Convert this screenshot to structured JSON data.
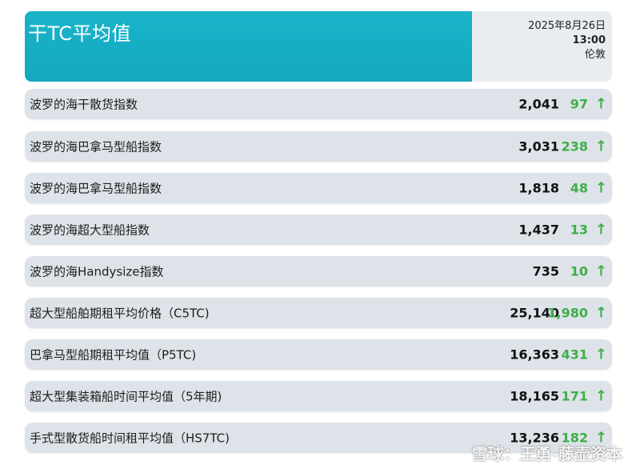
{
  "header": {
    "title": "干TC平均值",
    "date": "2025年8月26日",
    "time": "13:00",
    "location": "伦敦"
  },
  "rows": [
    {
      "label": "波罗的海干散货指数",
      "value": "2,041",
      "change": "97",
      "arrow": "↑"
    },
    {
      "label": "波罗的海巴拿马型船指数",
      "value": "3,031",
      "change": "238",
      "arrow": "↑"
    },
    {
      "label": "波罗的海巴拿马型船指数",
      "value": "1,818",
      "change": "48",
      "arrow": "↑"
    },
    {
      "label": "波罗的海超大型船指数",
      "value": "1,437",
      "change": "13",
      "arrow": "↑"
    },
    {
      "label": "波罗的海Handysize指数",
      "value": "735",
      "change": "10",
      "arrow": "↑"
    },
    {
      "label": "超大型船舶期租平均价格（C5TC)",
      "value": "25,140",
      "change": "1,980",
      "arrow": "↑"
    },
    {
      "label": "巴拿马型船期租平均值（P5TC)",
      "value": "16,363",
      "change": "431",
      "arrow": "↑"
    },
    {
      "label": "超大型集装箱船时间平均值（5年期)",
      "value": "18,165",
      "change": "171",
      "arrow": "↑"
    },
    {
      "label": "手式型散货船时间租平均值（HS7TC)",
      "value": "13,236",
      "change": "182",
      "arrow": "↑"
    }
  ],
  "watermark": "雪球：王勇-藤壶资本",
  "colors": {
    "accent": "#19b4c9",
    "positive": "#3fae4a",
    "row_bg": "#dde3e8"
  }
}
